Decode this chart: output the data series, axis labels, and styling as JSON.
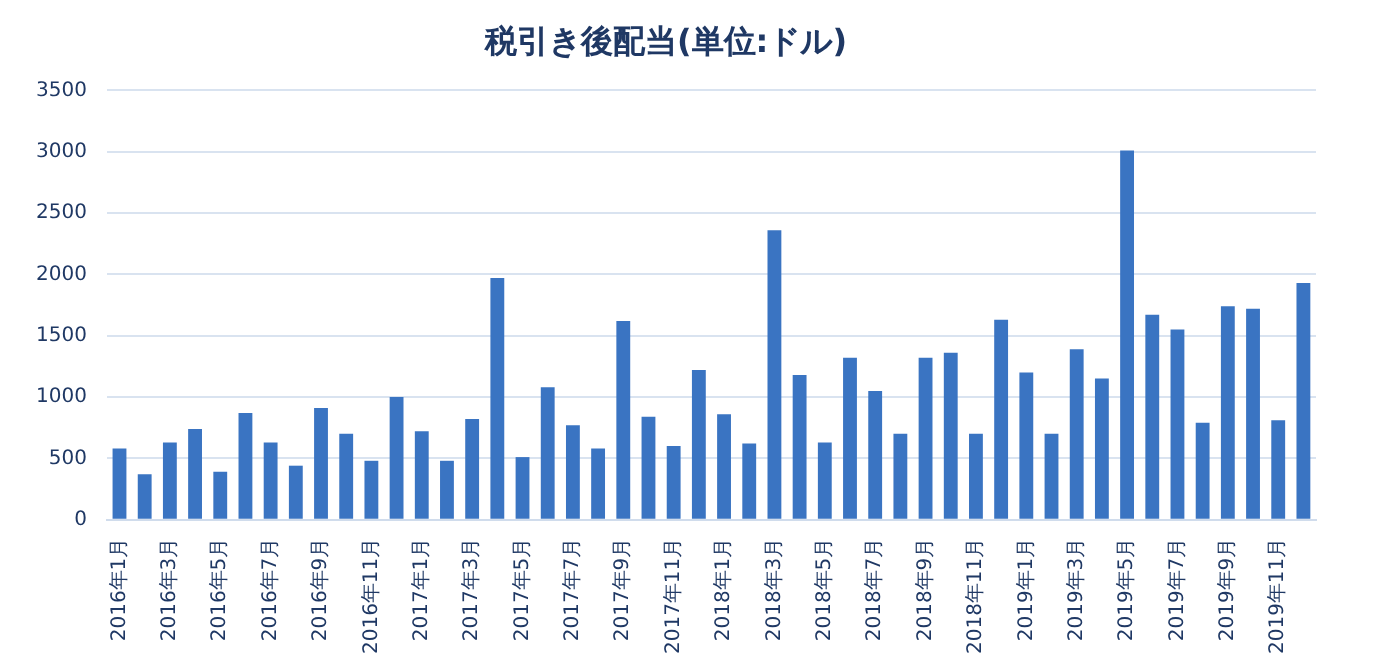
{
  "chart_data": {
    "type": "bar",
    "title": "税引き後配当(単位:ドル)",
    "categories": [
      "2016年1月",
      null,
      "2016年3月",
      null,
      "2016年5月",
      null,
      "2016年7月",
      null,
      "2016年9月",
      null,
      "2016年11月",
      null,
      "2017年1月",
      null,
      "2017年3月",
      null,
      "2017年5月",
      null,
      "2017年7月",
      null,
      "2017年9月",
      null,
      "2017年11月",
      null,
      "2018年1月",
      null,
      "2018年3月",
      null,
      "2018年5月",
      null,
      "2018年7月",
      null,
      "2018年9月",
      null,
      "2018年11月",
      null,
      "2019年1月",
      null,
      "2019年3月",
      null,
      "2019年5月",
      null,
      "2019年7月",
      null,
      "2019年9月",
      null,
      "2019年11月",
      null
    ],
    "values": [
      580,
      370,
      630,
      740,
      390,
      870,
      630,
      440,
      910,
      700,
      480,
      1000,
      720,
      480,
      820,
      1970,
      510,
      1080,
      770,
      580,
      1620,
      840,
      600,
      1220,
      860,
      620,
      2360,
      1180,
      630,
      1320,
      1050,
      700,
      1320,
      1360,
      700,
      1630,
      1200,
      700,
      1390,
      1150,
      3010,
      1670,
      1550,
      790,
      1740,
      1720,
      810,
      1930
    ],
    "color": "#3a74c2",
    "ylim": [
      0,
      3500
    ],
    "yticks": [
      0,
      500,
      1000,
      1500,
      2000,
      2500,
      3000,
      3500
    ],
    "grid": "y"
  }
}
